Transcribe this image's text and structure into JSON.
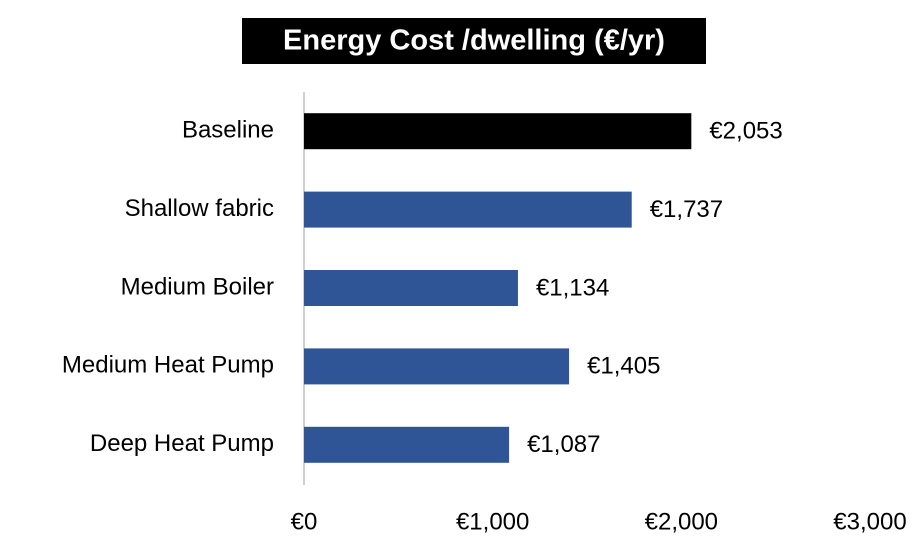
{
  "chart_data": {
    "type": "bar",
    "orientation": "horizontal",
    "title": "Energy Cost /dwelling (€/yr)",
    "categories": [
      "Baseline",
      "Shallow fabric",
      "Medium Boiler",
      "Medium Heat Pump",
      "Deep Heat Pump"
    ],
    "values": [
      2053,
      1737,
      1134,
      1405,
      1087
    ],
    "value_labels": [
      "€2,053",
      "€1,737",
      "€1,134",
      "€1,405",
      "€1,087"
    ],
    "colors": [
      "#000000",
      "#2f5597",
      "#2f5597",
      "#2f5597",
      "#2f5597"
    ],
    "xlim": [
      0,
      3000
    ],
    "xticks": [
      {
        "value": 0,
        "label": "€0"
      },
      {
        "value": 1000,
        "label": "€1,000"
      },
      {
        "value": 2000,
        "label": "€2,000"
      },
      {
        "value": 3000,
        "label": "€3,000"
      }
    ],
    "grid": false
  }
}
